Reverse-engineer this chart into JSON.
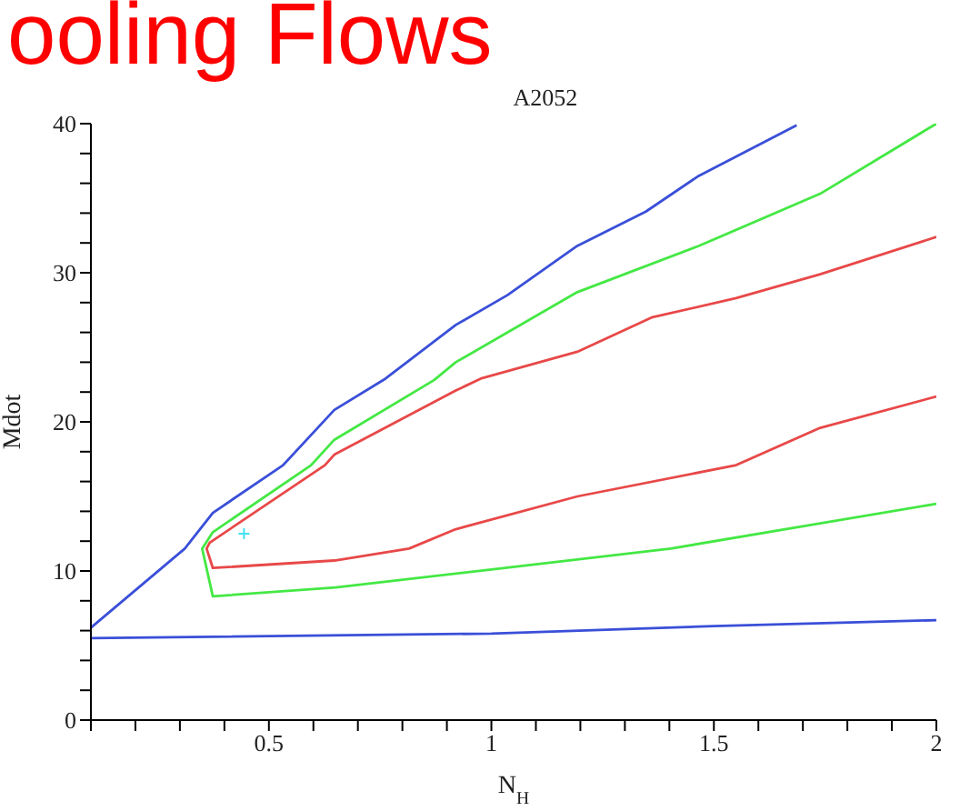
{
  "chart_data": {
    "type": "line",
    "title": "ooling Flows",
    "subtitle": "A2052",
    "xlabel": "N$_{H}$",
    "ylabel": "Mdot",
    "xlim": [
      0.1,
      2
    ],
    "xticks": [
      {
        "value": 0.1,
        "label": null
      },
      {
        "value": 0.2,
        "label": null
      },
      {
        "value": 0.3,
        "label": null
      },
      {
        "value": 0.4,
        "label": null
      },
      0.5,
      {
        "value": 0.6,
        "label": null
      },
      {
        "value": 0.7,
        "label": null
      },
      {
        "value": 0.8,
        "label": null
      },
      {
        "value": 0.9,
        "label": null
      },
      1,
      {
        "value": 1.1,
        "label": null
      },
      {
        "value": 1.2,
        "label": null
      },
      {
        "value": 1.3,
        "label": null
      },
      {
        "value": 1.4,
        "label": null
      },
      1.5,
      {
        "value": 1.6,
        "label": null
      },
      {
        "value": 1.7,
        "label": null
      },
      {
        "value": 1.8,
        "label": null
      },
      {
        "value": 1.9,
        "label": null
      },
      2
    ],
    "ylim": [
      0,
      40
    ],
    "yticks": [
      0,
      {
        "value": 2,
        "label": null
      },
      {
        "value": 4,
        "label": null
      },
      {
        "value": 6,
        "label": null
      },
      {
        "value": 8,
        "label": null
      },
      10,
      {
        "value": 12,
        "label": null
      },
      {
        "value": 14,
        "label": null
      },
      {
        "value": 16,
        "label": null
      },
      {
        "value": 18,
        "label": null
      },
      20,
      {
        "value": 22,
        "label": null
      },
      {
        "value": 24,
        "label": null
      },
      {
        "value": 26,
        "label": null
      },
      {
        "value": 28,
        "label": null
      },
      30,
      {
        "value": 32,
        "label": null
      },
      {
        "value": 34,
        "label": null
      },
      {
        "value": 36,
        "label": null
      },
      {
        "value": 38,
        "label": null
      },
      40
    ],
    "grid": false,
    "line_style": "solid",
    "series": [
      {
        "color": "#3a4fd8",
        "x": [
          1.686,
          1.466,
          1.347,
          1.193,
          1.036,
          0.92,
          0.762,
          0.647,
          0.532,
          0.374,
          0.311,
          0.1
        ],
        "values": [
          39.9,
          36.5,
          34.1,
          31.8,
          28.5,
          26.5,
          22.9,
          20.8,
          17.1,
          13.9,
          11.5,
          6.2
        ]
      },
      {
        "color": "#3a4fd8",
        "x": [
          0.1,
          1.0,
          1.5,
          2.0
        ],
        "values": [
          5.5,
          5.8,
          6.3,
          6.7
        ]
      },
      {
        "color": "#44e844",
        "x": [
          2.0,
          1.739,
          1.466,
          1.193,
          0.92,
          0.871,
          0.647,
          0.595,
          0.374,
          0.35,
          0.374,
          0.65,
          1.0,
          1.403,
          1.739,
          2.0
        ],
        "values": [
          40,
          35.3,
          31.8,
          28.7,
          24.0,
          22.8,
          18.8,
          17.1,
          12.6,
          11.5,
          8.3,
          8.9,
          10.1,
          11.5,
          13.2,
          14.5
        ]
      },
      {
        "color": "#e84848",
        "x": [
          2.0,
          1.739,
          1.55,
          1.36,
          1.193,
          0.976,
          0.92,
          0.647,
          0.626,
          0.367,
          0.36,
          0.374,
          0.647,
          0.815,
          0.92,
          1.193,
          1.55,
          1.739,
          2.0
        ],
        "values": [
          32.4,
          29.9,
          28.3,
          27.0,
          24.7,
          22.9,
          22.1,
          17.8,
          17.1,
          11.9,
          11.5,
          10.2,
          10.7,
          11.5,
          12.8,
          15.0,
          17.1,
          19.6,
          21.7
        ]
      },
      {
        "type": "scatter",
        "marker": "cross",
        "color": "#40e0f0",
        "x": [
          0.444
        ],
        "values": [
          12.5
        ]
      }
    ]
  }
}
